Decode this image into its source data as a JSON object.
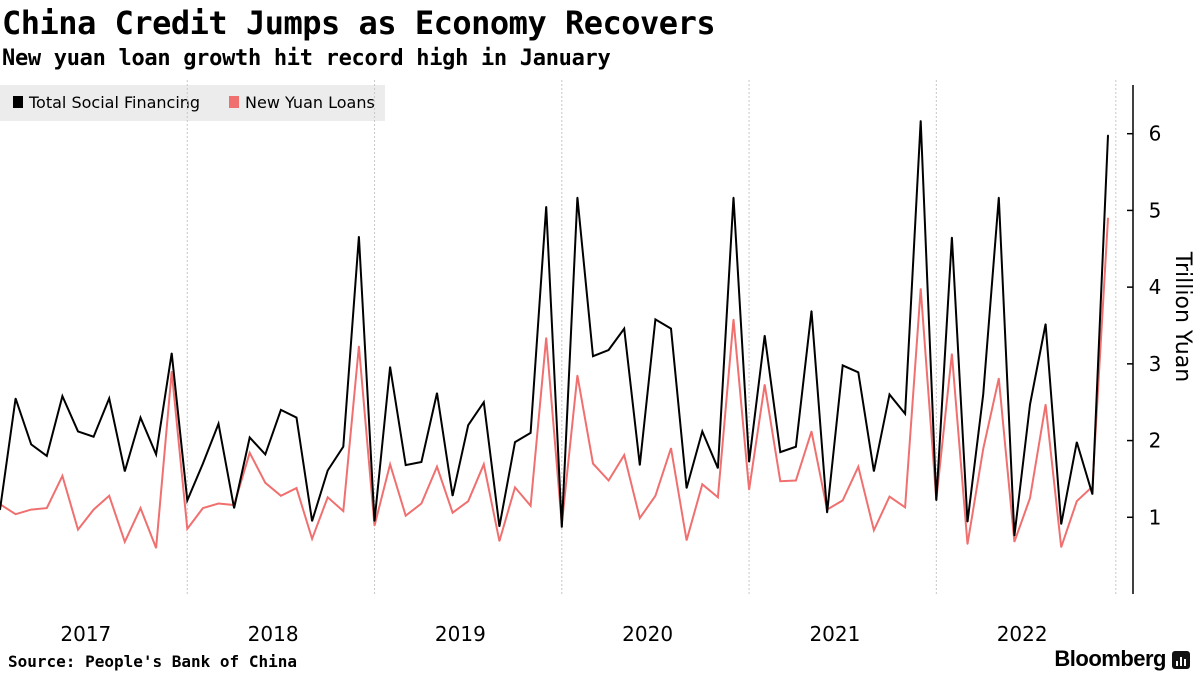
{
  "header": {
    "title": "China Credit Jumps as Economy Recovers",
    "subtitle": "New yuan loan growth hit record high in January"
  },
  "footer": {
    "source": "Source: People's Bank of China",
    "brand": "Bloomberg",
    "brand_icon": "bloomberg-chart-icon"
  },
  "chart_data": {
    "type": "line",
    "title": "China Credit Jumps as Economy Recovers",
    "subtitle": "New yuan loan growth hit record high in January",
    "xlabel": "",
    "ylabel": "Trillion Yuan",
    "ylim": [
      0,
      6.7
    ],
    "yticks": [
      1,
      2,
      3,
      4,
      5,
      6
    ],
    "year_labels": [
      "2017",
      "2018",
      "2019",
      "2020",
      "2021",
      "2022"
    ],
    "x_start": "2017-01",
    "x_end": "2023-01",
    "grid": "vertical-dotted-year-separators",
    "legend_position": "top-left",
    "series": [
      {
        "name": "Total Social Financing",
        "color": "#000000",
        "values": [
          1.1,
          2.55,
          1.95,
          1.8,
          2.58,
          2.12,
          2.05,
          2.55,
          1.6,
          2.3,
          1.82,
          3.14,
          1.22,
          1.7,
          2.22,
          1.12,
          2.04,
          1.82,
          2.4,
          2.3,
          0.95,
          1.61,
          1.92,
          4.66,
          0.95,
          2.96,
          1.68,
          1.72,
          2.62,
          1.28,
          2.2,
          2.5,
          0.88,
          1.98,
          2.1,
          5.05,
          0.87,
          5.17,
          3.1,
          3.18,
          3.46,
          1.68,
          3.58,
          3.46,
          1.38,
          2.12,
          1.64,
          5.17,
          1.72,
          3.37,
          1.85,
          1.92,
          3.69,
          1.06,
          2.98,
          2.89,
          1.6,
          2.6,
          2.35,
          6.17,
          1.22,
          4.65,
          0.94,
          2.6,
          5.17,
          0.76,
          2.47,
          3.52,
          0.91,
          1.98,
          1.3,
          5.98
        ]
      },
      {
        "name": "New Yuan Loans",
        "color": "#f07070",
        "values": [
          1.17,
          1.04,
          1.1,
          1.12,
          1.54,
          0.84,
          1.1,
          1.28,
          0.68,
          1.12,
          0.6,
          2.9,
          0.85,
          1.12,
          1.18,
          1.16,
          1.84,
          1.45,
          1.28,
          1.38,
          0.72,
          1.26,
          1.08,
          3.23,
          0.89,
          1.69,
          1.02,
          1.18,
          1.66,
          1.06,
          1.21,
          1.69,
          0.69,
          1.39,
          1.15,
          3.34,
          0.91,
          2.85,
          1.7,
          1.48,
          1.81,
          0.99,
          1.28,
          1.9,
          0.7,
          1.43,
          1.26,
          3.58,
          1.36,
          2.73,
          1.47,
          1.48,
          2.12,
          1.1,
          1.22,
          1.66,
          0.83,
          1.27,
          1.13,
          3.98,
          1.23,
          3.13,
          0.65,
          1.89,
          2.81,
          0.68,
          1.25,
          2.47,
          0.61,
          1.21,
          1.4,
          4.9
        ]
      }
    ]
  }
}
